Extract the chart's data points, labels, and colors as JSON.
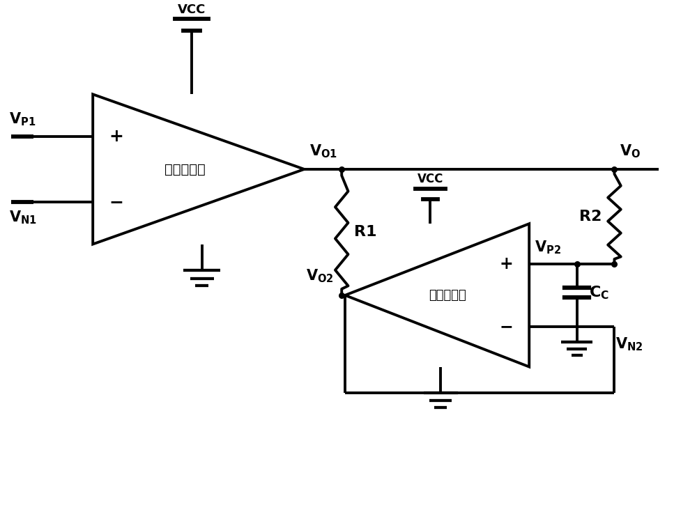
{
  "bg_color": "#ffffff",
  "line_color": "#000000",
  "lw": 2.8,
  "dot_r": 5.5,
  "fig_w": 10.0,
  "fig_h": 7.25,
  "dpi": 100,
  "labels": {
    "VP1": "$\\mathbf{V_{P1}}$",
    "VN1": "$\\mathbf{V_{N1}}$",
    "VO1": "$\\mathbf{V_{O1}}$",
    "VO": "$\\mathbf{V_O}$",
    "VO2": "$\\mathbf{V_{O2}}$",
    "VP2": "$\\mathbf{V_{P2}}$",
    "VN2": "$\\mathbf{V_{N2}}$",
    "VCC": "VCC",
    "R1": "R1",
    "R2": "R2",
    "CC": "$\\mathbf{C_C}$",
    "diff_amp": "差分放大器",
    "op_amp": "运算放大器"
  }
}
